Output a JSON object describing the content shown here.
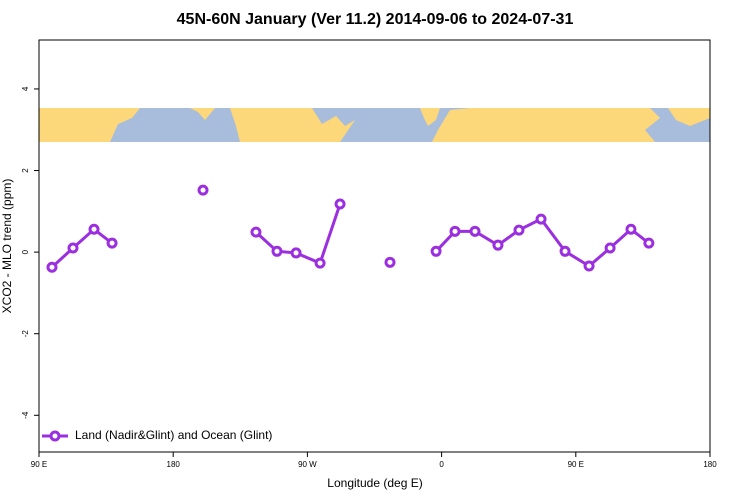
{
  "chart_data": {
    "type": "line",
    "title": "45N-60N January (Ver 11.2)   2014-09-06 to 2024-07-31",
    "xlabel": "Longitude (deg E)",
    "ylabel": "XCO2 - MLO trend (ppm)",
    "x": [
      98.7,
      112.8,
      126.9,
      139,
      170,
      200,
      218,
      235.5,
      249.6,
      262.4,
      278.5,
      291.9,
      308,
      325.4,
      340,
      356.3,
      369,
      382.4,
      397.8,
      411.9,
      426.7,
      442.8,
      458.9,
      473,
      487,
      499
    ],
    "series": [
      {
        "name": "Land (Nadir&Glint) and Ocean (Glint)",
        "color": "#9b2fe0",
        "values": [
          -0.37,
          0.1,
          0.56,
          0.22,
          null,
          1.52,
          null,
          0.49,
          0.02,
          -0.02,
          -0.27,
          1.18,
          null,
          -0.25,
          null,
          0.02,
          0.51,
          0.51,
          0.17,
          0.54,
          0.81,
          0.02,
          -0.34,
          0.1,
          0.56,
          0.22
        ]
      }
    ],
    "xlim": [
      90,
      540
    ],
    "xticks": [
      {
        "value": 90,
        "label": "90 E"
      },
      {
        "value": 180,
        "label": "180"
      },
      {
        "value": 270,
        "label": "90 W"
      },
      {
        "value": 360,
        "label": "0"
      },
      {
        "value": 450,
        "label": "90 E"
      },
      {
        "value": 540,
        "label": "180"
      }
    ],
    "ylim": [
      -4.9,
      5.2
    ],
    "yticks": [
      -4,
      -2,
      0,
      2,
      4
    ],
    "legend": "bottom-left"
  }
}
